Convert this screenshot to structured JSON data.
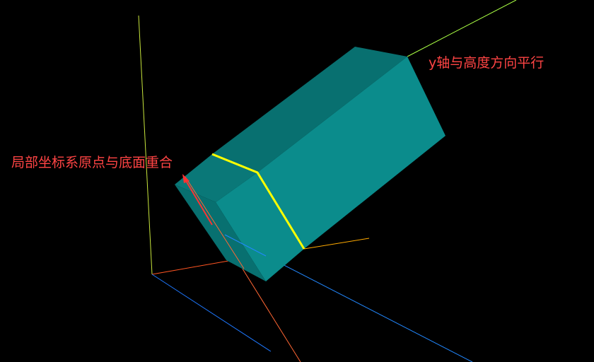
{
  "annotations": {
    "y_axis_parallel": "y轴与高度方向平行",
    "origin_coincides": "局部坐标系原点与底面重合"
  },
  "colors": {
    "background": "#000000",
    "label_text": "#ff4444",
    "box_top": "#0a7f7f",
    "box_side": "#0b8c8c",
    "box_end": "#087070",
    "seam": "#ffff00",
    "axis_y_world": "#c8e63c",
    "axis_x_world": "#ff5522",
    "axis_z_world": "#1e78ff",
    "axis_y_local": "#aaff44",
    "axis_x_local": "#ff6633",
    "axis_z_local": "#2288ff",
    "axis_orange": "#ffaa00",
    "arrow": "#ff3333"
  }
}
